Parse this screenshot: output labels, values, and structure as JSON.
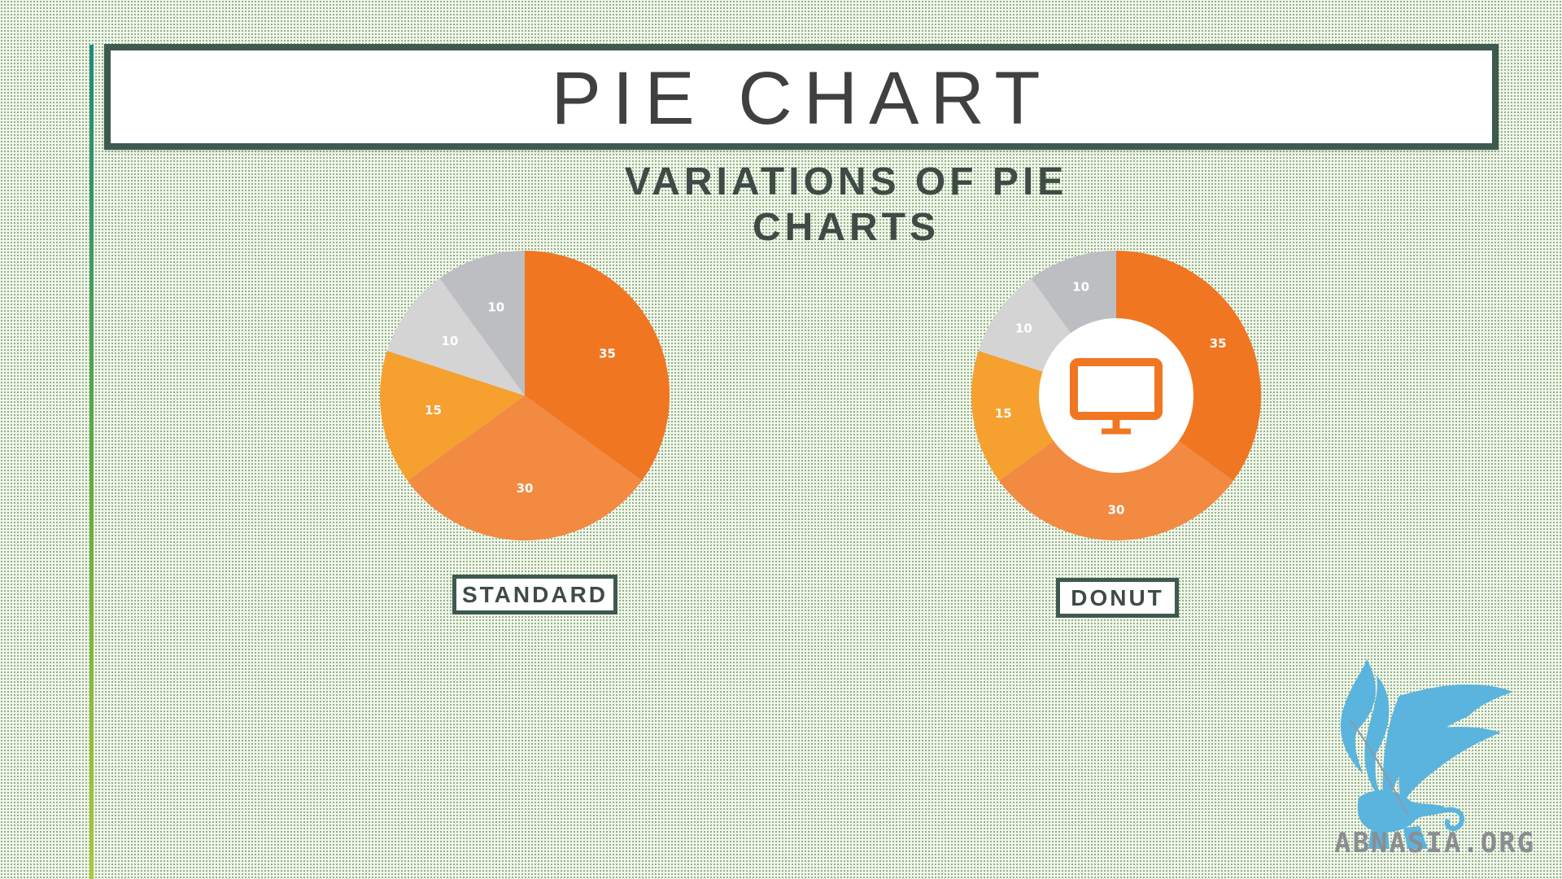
{
  "slide": {
    "title": "PIE CHART",
    "subtitle": "VARIATIONS OF PIE CHARTS"
  },
  "colors": {
    "orange_dark": "#F07622",
    "orange_medium": "#F28A42",
    "orange_light": "#F6A030",
    "gray_light": "#D4D4D5",
    "gray_medium": "#BDBEC1",
    "frame": "#3E5A4E",
    "logo_blue": "#5BB4DD"
  },
  "chart_data": [
    {
      "type": "pie",
      "caption": "STANDARD",
      "values": [
        35,
        30,
        15,
        10,
        10
      ],
      "labels": [
        "35",
        "30",
        "15",
        "10",
        "10"
      ],
      "colors": [
        "#F07622",
        "#F28A42",
        "#F6A030",
        "#D4D4D5",
        "#BDBEC1"
      ]
    },
    {
      "type": "pie",
      "variant": "donut",
      "caption": "DONUT",
      "center_icon": "monitor-icon",
      "values": [
        35,
        30,
        15,
        10,
        10
      ],
      "labels": [
        "35",
        "30",
        "15",
        "10",
        "10"
      ],
      "colors": [
        "#F07622",
        "#F28A42",
        "#F6A030",
        "#D4D4D5",
        "#BDBEC1"
      ]
    }
  ],
  "logo": {
    "icon": "griffin-logo-icon",
    "text": "ABNASIA.ORG"
  }
}
